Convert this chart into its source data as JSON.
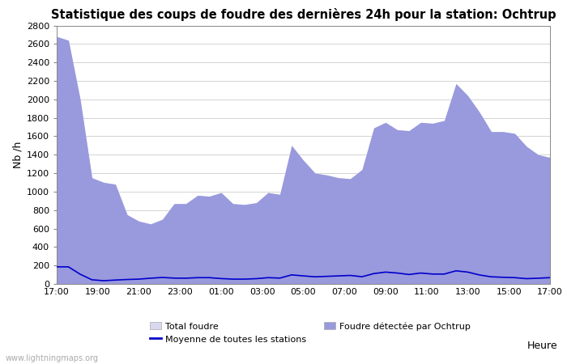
{
  "title": "Statistique des coups de foudre des dernières 24h pour la station: Ochtrup",
  "xlabel": "Heure",
  "ylabel": "Nb /h",
  "ylim": [
    0,
    2800
  ],
  "yticks": [
    0,
    200,
    400,
    600,
    800,
    1000,
    1200,
    1400,
    1600,
    1800,
    2000,
    2200,
    2400,
    2600,
    2800
  ],
  "xtick_labels": [
    "17:00",
    "19:00",
    "21:00",
    "23:00",
    "01:00",
    "03:00",
    "05:00",
    "07:00",
    "09:00",
    "11:00",
    "13:00",
    "15:00",
    "17:00"
  ],
  "watermark": "www.lightningmaps.org",
  "total_color": "#d8d8f0",
  "detected_color": "#9999dd",
  "mean_color": "#0000cc",
  "total_foudre": [
    2680,
    2640,
    2000,
    1150,
    1100,
    1080,
    750,
    680,
    650,
    700,
    870,
    870,
    960,
    950,
    990,
    870,
    860,
    880,
    990,
    970,
    1500,
    1340,
    1200,
    1180,
    1150,
    1140,
    1240,
    1690,
    1750,
    1670,
    1660,
    1750,
    1740,
    1770,
    2170,
    2040,
    1860,
    1650,
    1650,
    1630,
    1490,
    1400,
    1370
  ],
  "detected_foudre": [
    2680,
    2640,
    2000,
    1150,
    1100,
    1080,
    750,
    680,
    650,
    700,
    870,
    870,
    960,
    950,
    990,
    870,
    860,
    880,
    990,
    970,
    1500,
    1340,
    1200,
    1180,
    1150,
    1140,
    1240,
    1690,
    1750,
    1670,
    1660,
    1750,
    1740,
    1770,
    2170,
    2040,
    1860,
    1650,
    1650,
    1630,
    1490,
    1400,
    1370
  ],
  "mean_foudre": [
    185,
    185,
    105,
    45,
    35,
    42,
    48,
    52,
    62,
    70,
    63,
    62,
    68,
    68,
    58,
    52,
    52,
    57,
    68,
    63,
    98,
    87,
    77,
    82,
    87,
    92,
    78,
    112,
    128,
    118,
    102,
    118,
    107,
    107,
    142,
    128,
    97,
    77,
    72,
    68,
    57,
    62,
    68
  ]
}
